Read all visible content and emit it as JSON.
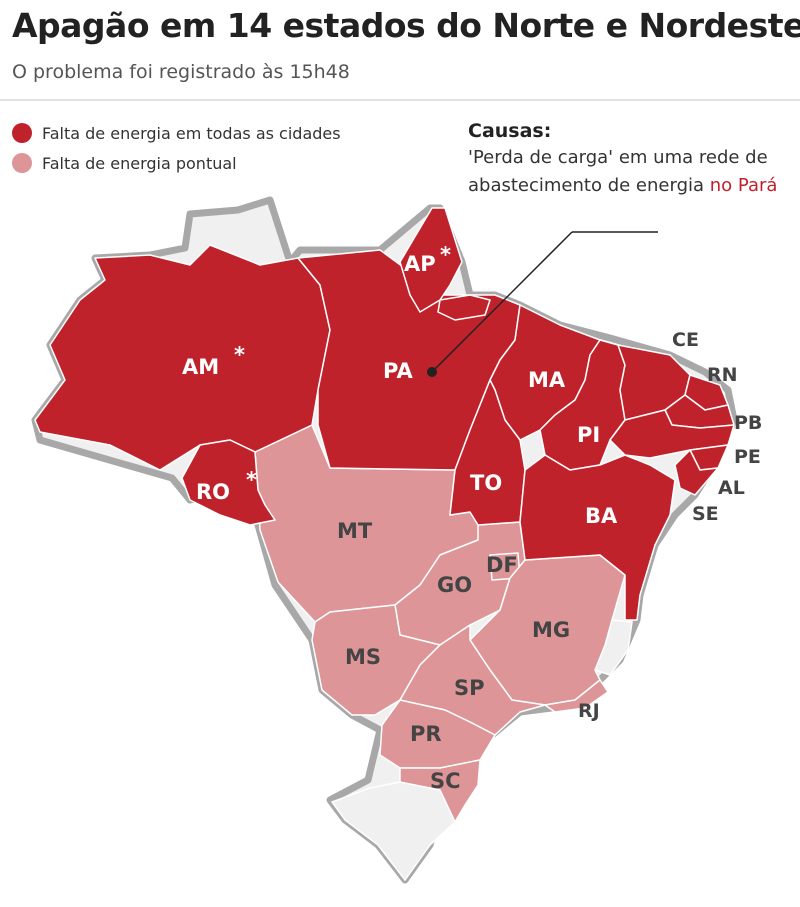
{
  "header": {
    "title": "Apagão em 14 estados do Norte e Nordeste",
    "subtitle": "O problema foi registrado às 15h48"
  },
  "legend": [
    {
      "label": "Falta de energia em todas as cidades",
      "color": "#c0222c"
    },
    {
      "label": "Falta de energia pontual",
      "color": "#dd9598"
    }
  ],
  "causes": {
    "title": "Causas:",
    "text": "'Perda de carga' em uma rede de abastecimento de energia",
    "highlight": "no Pará",
    "highlight_color": "#c0222c"
  },
  "colors": {
    "full_outage": "#c0222c",
    "partial_outage": "#dd9598",
    "unaffected": "#f0f0f0",
    "border": "#a8a8a8"
  },
  "map": {
    "states": [
      {
        "code": "AM",
        "status": "full_outage",
        "asterisk": "*"
      },
      {
        "code": "PA",
        "status": "full_outage",
        "asterisk": ""
      },
      {
        "code": "AP",
        "status": "full_outage",
        "asterisk": "*"
      },
      {
        "code": "MA",
        "status": "full_outage",
        "asterisk": ""
      },
      {
        "code": "PI",
        "status": "full_outage",
        "asterisk": ""
      },
      {
        "code": "TO",
        "status": "full_outage",
        "asterisk": ""
      },
      {
        "code": "BA",
        "status": "full_outage",
        "asterisk": ""
      },
      {
        "code": "RO",
        "status": "full_outage",
        "asterisk": "*"
      },
      {
        "code": "MT",
        "status": "partial_outage",
        "asterisk": ""
      },
      {
        "code": "GO",
        "status": "partial_outage",
        "asterisk": ""
      },
      {
        "code": "DF",
        "status": "partial_outage",
        "asterisk": ""
      },
      {
        "code": "MG",
        "status": "partial_outage",
        "asterisk": ""
      },
      {
        "code": "MS",
        "status": "partial_outage",
        "asterisk": ""
      },
      {
        "code": "SP",
        "status": "partial_outage",
        "asterisk": ""
      },
      {
        "code": "PR",
        "status": "partial_outage",
        "asterisk": ""
      },
      {
        "code": "SC",
        "status": "partial_outage",
        "asterisk": ""
      },
      {
        "code": "RJ",
        "status": "partial_outage",
        "asterisk": ""
      }
    ],
    "outer_labels": [
      "CE",
      "RN",
      "PB",
      "PE",
      "AL",
      "SE"
    ]
  }
}
